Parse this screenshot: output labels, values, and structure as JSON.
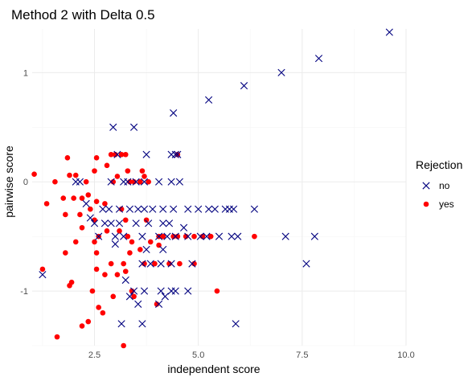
{
  "chart_data": {
    "type": "scatter",
    "title": "Method 2 with Delta 0.5",
    "xlabel": "independent score",
    "ylabel": "pairwise score",
    "xlim": [
      1.0,
      10.0
    ],
    "ylim": [
      -1.5,
      1.4
    ],
    "x_ticks": [
      2.5,
      5.0,
      7.5,
      10.0
    ],
    "x_tick_labels": [
      "2.5",
      "5.0",
      "7.5",
      "10.0"
    ],
    "y_ticks": [
      -1,
      0,
      1
    ],
    "y_tick_labels": [
      "-1",
      "0",
      "1"
    ],
    "grid": true,
    "legend": {
      "title": "Rejection",
      "position": "right"
    },
    "series": [
      {
        "name": "no",
        "marker": "x",
        "color": "#00007f",
        "points": [
          [
            9.6,
            1.37
          ],
          [
            7.9,
            1.13
          ],
          [
            7.0,
            1.0
          ],
          [
            6.1,
            0.88
          ],
          [
            5.25,
            0.75
          ],
          [
            4.4,
            0.63
          ],
          [
            2.95,
            0.5
          ],
          [
            3.45,
            0.5
          ],
          [
            3.75,
            0.25
          ],
          [
            4.35,
            0.25
          ],
          [
            4.45,
            0.25
          ],
          [
            4.5,
            0.25
          ],
          [
            3.05,
            0.25
          ],
          [
            2.05,
            0.0
          ],
          [
            2.15,
            0.0
          ],
          [
            2.9,
            0.0
          ],
          [
            3.2,
            0.0
          ],
          [
            3.3,
            0.0
          ],
          [
            3.5,
            0.0
          ],
          [
            3.7,
            0.0
          ],
          [
            4.05,
            0.0
          ],
          [
            4.35,
            0.0
          ],
          [
            4.55,
            0.0
          ],
          [
            2.3,
            -0.2
          ],
          [
            2.7,
            -0.25
          ],
          [
            2.85,
            -0.25
          ],
          [
            3.1,
            -0.25
          ],
          [
            3.35,
            -0.25
          ],
          [
            3.55,
            -0.25
          ],
          [
            3.7,
            -0.25
          ],
          [
            3.9,
            -0.25
          ],
          [
            4.15,
            -0.25
          ],
          [
            4.4,
            -0.25
          ],
          [
            4.75,
            -0.25
          ],
          [
            5.0,
            -0.25
          ],
          [
            5.25,
            -0.25
          ],
          [
            5.65,
            -0.25
          ],
          [
            5.75,
            -0.25
          ],
          [
            5.85,
            -0.25
          ],
          [
            6.35,
            -0.25
          ],
          [
            5.4,
            -0.25
          ],
          [
            2.4,
            -0.33
          ],
          [
            2.5,
            -0.38
          ],
          [
            2.75,
            -0.38
          ],
          [
            2.9,
            -0.38
          ],
          [
            3.1,
            -0.38
          ],
          [
            3.5,
            -0.38
          ],
          [
            3.8,
            -0.38
          ],
          [
            4.15,
            -0.38
          ],
          [
            4.3,
            -0.38
          ],
          [
            4.65,
            -0.42
          ],
          [
            2.6,
            -0.5
          ],
          [
            3.0,
            -0.5
          ],
          [
            3.2,
            -0.5
          ],
          [
            3.65,
            -0.5
          ],
          [
            4.05,
            -0.5
          ],
          [
            4.25,
            -0.5
          ],
          [
            4.45,
            -0.5
          ],
          [
            4.75,
            -0.5
          ],
          [
            5.05,
            -0.5
          ],
          [
            5.2,
            -0.5
          ],
          [
            5.5,
            -0.5
          ],
          [
            5.8,
            -0.5
          ],
          [
            5.95,
            -0.5
          ],
          [
            7.1,
            -0.5
          ],
          [
            7.8,
            -0.5
          ],
          [
            3.0,
            -0.57
          ],
          [
            3.75,
            -0.62
          ],
          [
            4.15,
            -0.62
          ],
          [
            3.65,
            -0.75
          ],
          [
            3.85,
            -0.75
          ],
          [
            4.1,
            -0.75
          ],
          [
            4.35,
            -0.75
          ],
          [
            4.85,
            -0.75
          ],
          [
            7.6,
            -0.75
          ],
          [
            1.25,
            -0.85
          ],
          [
            3.25,
            -0.9
          ],
          [
            3.45,
            -1.0
          ],
          [
            3.7,
            -1.0
          ],
          [
            4.1,
            -1.0
          ],
          [
            4.45,
            -1.0
          ],
          [
            4.2,
            -1.05
          ],
          [
            4.35,
            -1.0
          ],
          [
            4.75,
            -1.0
          ],
          [
            3.35,
            -1.05
          ],
          [
            4.05,
            -1.12
          ],
          [
            3.55,
            -1.12
          ],
          [
            3.15,
            -1.3
          ],
          [
            3.65,
            -1.3
          ],
          [
            5.9,
            -1.3
          ]
        ]
      },
      {
        "name": "yes",
        "marker": "circle",
        "color": "#ff0000",
        "points": [
          [
            1.05,
            0.07
          ],
          [
            1.55,
            0.0
          ],
          [
            1.85,
            0.22
          ],
          [
            1.9,
            0.06
          ],
          [
            2.05,
            0.06
          ],
          [
            2.3,
            0.0
          ],
          [
            2.5,
            0.1
          ],
          [
            2.55,
            0.22
          ],
          [
            2.8,
            0.15
          ],
          [
            2.9,
            0.25
          ],
          [
            3.0,
            0.25
          ],
          [
            3.15,
            0.25
          ],
          [
            3.25,
            0.25
          ],
          [
            3.3,
            0.1
          ],
          [
            3.05,
            0.05
          ],
          [
            2.95,
            0.0
          ],
          [
            3.65,
            0.1
          ],
          [
            3.7,
            0.05
          ],
          [
            3.6,
            0.0
          ],
          [
            3.45,
            0.0
          ],
          [
            3.35,
            0.0
          ],
          [
            3.8,
            0.0
          ],
          [
            4.5,
            0.25
          ],
          [
            1.35,
            -0.2
          ],
          [
            1.75,
            -0.15
          ],
          [
            2.0,
            -0.15
          ],
          [
            2.2,
            -0.15
          ],
          [
            2.35,
            -0.12
          ],
          [
            2.55,
            -0.18
          ],
          [
            2.75,
            -0.2
          ],
          [
            2.4,
            -0.25
          ],
          [
            1.8,
            -0.3
          ],
          [
            2.15,
            -0.3
          ],
          [
            2.5,
            -0.35
          ],
          [
            3.25,
            -0.35
          ],
          [
            3.15,
            -0.25
          ],
          [
            3.75,
            -0.35
          ],
          [
            2.2,
            -0.42
          ],
          [
            2.8,
            -0.45
          ],
          [
            2.05,
            -0.55
          ],
          [
            2.5,
            -0.55
          ],
          [
            2.6,
            -0.5
          ],
          [
            3.1,
            -0.45
          ],
          [
            3.3,
            -0.5
          ],
          [
            3.4,
            -0.55
          ],
          [
            3.85,
            -0.55
          ],
          [
            4.05,
            -0.5
          ],
          [
            4.15,
            -0.5
          ],
          [
            4.4,
            -0.5
          ],
          [
            4.5,
            -0.5
          ],
          [
            4.7,
            -0.5
          ],
          [
            4.9,
            -0.5
          ],
          [
            5.1,
            -0.5
          ],
          [
            5.3,
            -0.5
          ],
          [
            6.35,
            -0.5
          ],
          [
            1.8,
            -0.65
          ],
          [
            2.55,
            -0.65
          ],
          [
            3.35,
            -0.65
          ],
          [
            3.6,
            -0.62
          ],
          [
            4.05,
            -0.58
          ],
          [
            2.55,
            -0.8
          ],
          [
            2.9,
            -0.75
          ],
          [
            3.2,
            -0.75
          ],
          [
            3.7,
            -0.75
          ],
          [
            3.95,
            -0.75
          ],
          [
            4.3,
            -0.75
          ],
          [
            4.55,
            -0.75
          ],
          [
            4.9,
            -0.75
          ],
          [
            1.25,
            -0.8
          ],
          [
            2.75,
            -0.85
          ],
          [
            3.05,
            -0.85
          ],
          [
            1.95,
            -0.92
          ],
          [
            1.9,
            -0.95
          ],
          [
            3.25,
            -0.82
          ],
          [
            3.4,
            -1.0
          ],
          [
            3.45,
            -1.05
          ],
          [
            5.45,
            -1.0
          ],
          [
            2.45,
            -1.0
          ],
          [
            2.95,
            -1.05
          ],
          [
            2.7,
            -1.2
          ],
          [
            4.0,
            -1.12
          ],
          [
            2.35,
            -1.28
          ],
          [
            2.2,
            -1.32
          ],
          [
            2.6,
            -1.15
          ],
          [
            1.6,
            -1.42
          ],
          [
            3.2,
            -1.5
          ]
        ]
      }
    ]
  }
}
